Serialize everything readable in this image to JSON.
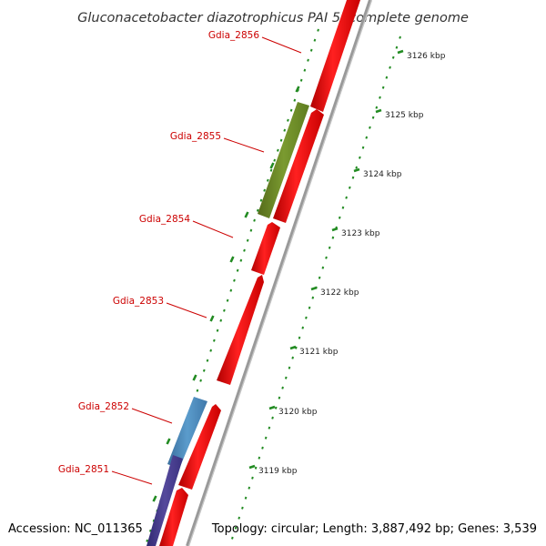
{
  "title": "Gluconacetobacter diazotrophicus PAI 5, complete genome",
  "footer": {
    "accession": "Accession: NC_011365",
    "topology": "Topology: circular; Length: 3,887,492 bp; Genes: 3,539"
  },
  "colors": {
    "forward_cds": "#ff0000",
    "gene_label": "#cc0000",
    "backbone": "#999999",
    "tick": "#228b22",
    "reverse_green": "#6b8e23",
    "reverse_blue": "#4682b4",
    "reverse_navy": "#483d8b"
  },
  "scale": {
    "unit": "kbp",
    "labels": [
      "3126 kbp",
      "3125 kbp",
      "3124 kbp",
      "3123 kbp",
      "3122 kbp",
      "3121 kbp",
      "3120 kbp",
      "3119 kbp"
    ]
  },
  "genes": [
    {
      "name": "Gdia_2856",
      "strand": "+"
    },
    {
      "name": "Gdia_2855",
      "strand": "-"
    },
    {
      "name": "Gdia_2854",
      "strand": "+"
    },
    {
      "name": "Gdia_2853",
      "strand": "+"
    },
    {
      "name": "Gdia_2852",
      "strand": "-"
    },
    {
      "name": "Gdia_2851",
      "strand": "-"
    }
  ]
}
